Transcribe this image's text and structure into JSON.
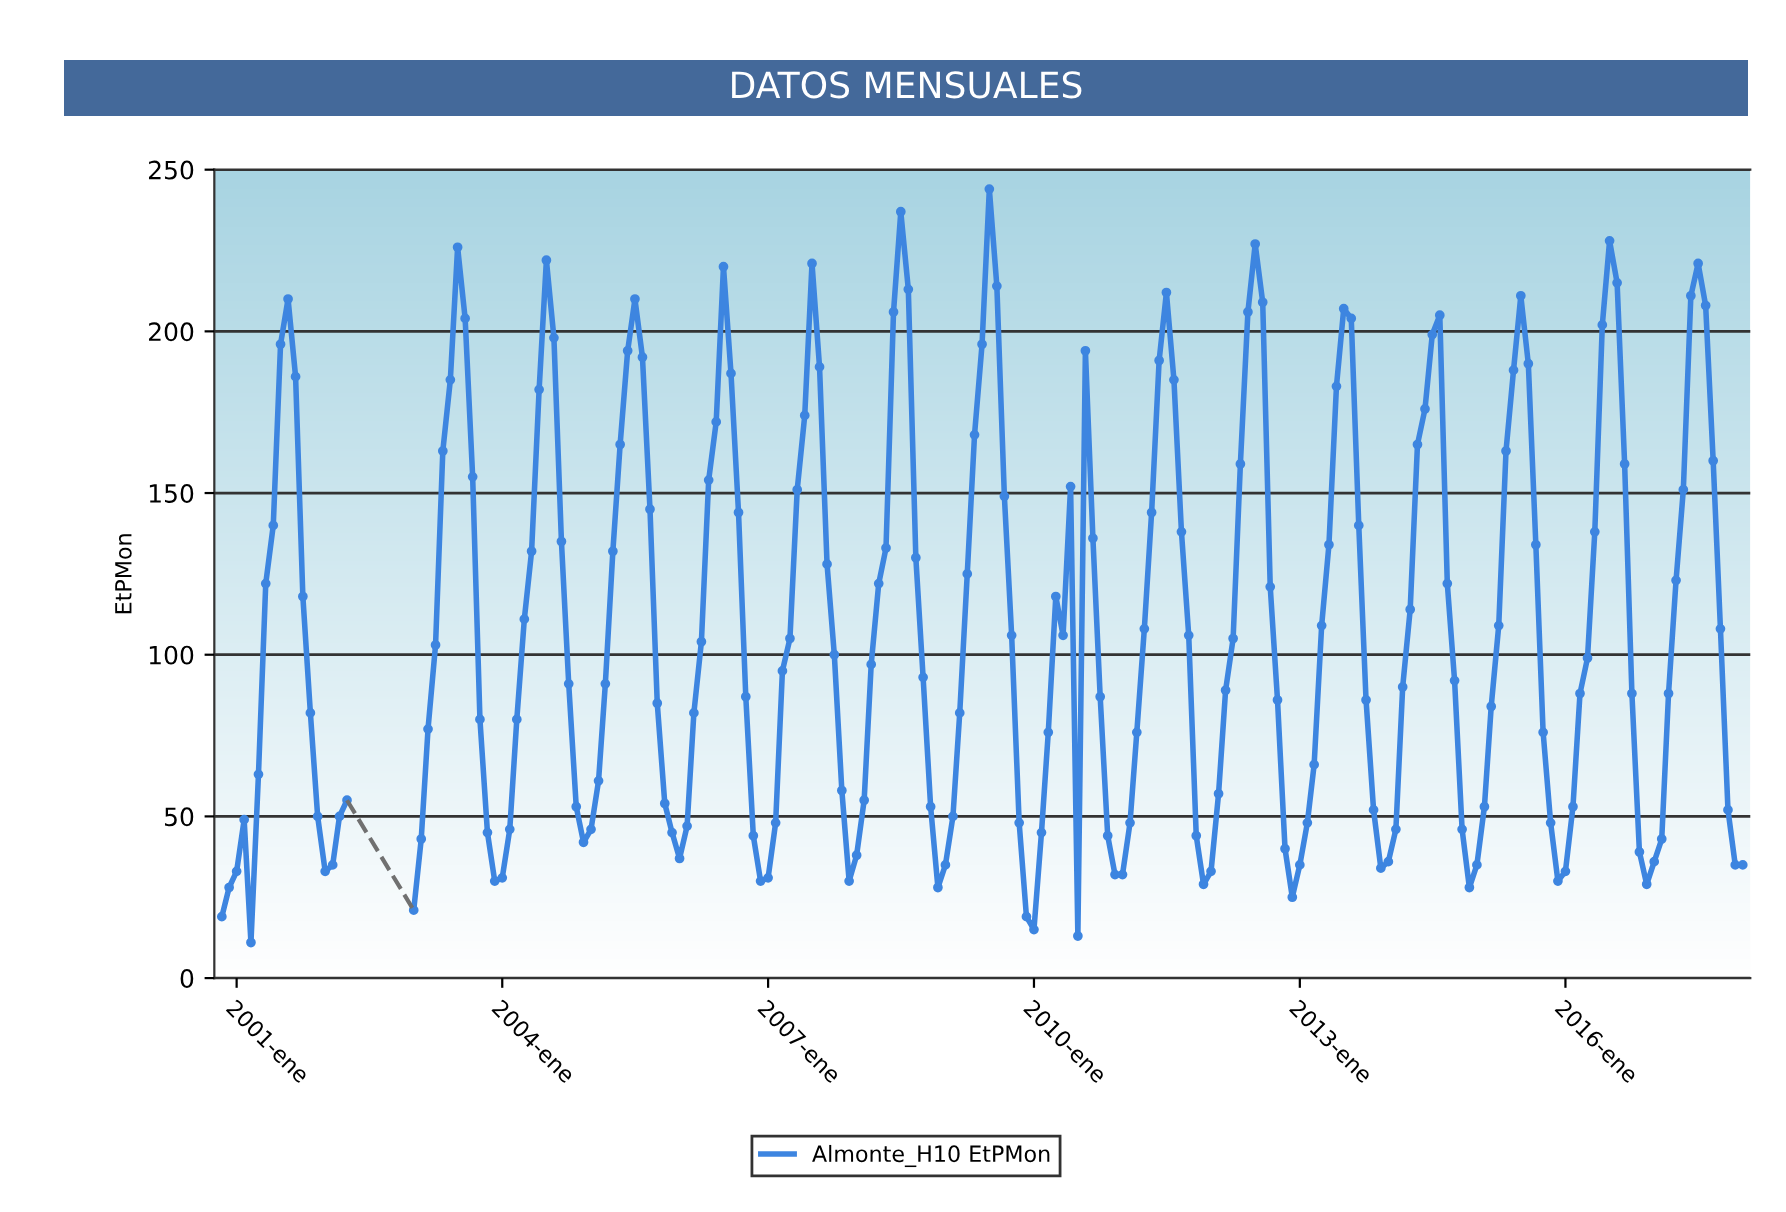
{
  "chart_data": {
    "type": "line",
    "title": "DATOS MENSUALES",
    "ylabel": "EtPMon",
    "xlim": [
      "2000-10",
      "2018-02"
    ],
    "ylim": [
      0,
      250
    ],
    "yticks": [
      0,
      50,
      100,
      150,
      200,
      250
    ],
    "xticks": [
      {
        "value": "2001-01",
        "label": "2001-ene"
      },
      {
        "value": "2004-01",
        "label": "2004-ene"
      },
      {
        "value": "2007-01",
        "label": "2007-ene"
      },
      {
        "value": "2010-01",
        "label": "2010-ene"
      },
      {
        "value": "2013-01",
        "label": "2013-ene"
      },
      {
        "value": "2016-01",
        "label": "2016-ene"
      }
    ],
    "grid": "y",
    "legend": "bottom",
    "marker": "circle",
    "series": [
      {
        "name": "Almonte_H10 EtPMon",
        "color": "#3d85e0",
        "line_style": "solid",
        "x": [
          "2000-11",
          "2000-12",
          "2001-01",
          "2001-02",
          "2001-03",
          "2001-04",
          "2001-05",
          "2001-06",
          "2001-07",
          "2001-08",
          "2001-09",
          "2001-10",
          "2001-11",
          "2001-12",
          "2002-01",
          "2002-02",
          "2002-03",
          "2002-04",
          "2002-05",
          "2002-06",
          "2002-07",
          "2002-08",
          "2002-09",
          "2002-10",
          "2002-11",
          "2002-12",
          "2003-01",
          "2003-02",
          "2003-03",
          "2003-04",
          "2003-05",
          "2003-06",
          "2003-07",
          "2003-08",
          "2003-09",
          "2003-10",
          "2003-11",
          "2003-12",
          "2004-01",
          "2004-02",
          "2004-03",
          "2004-04",
          "2004-05",
          "2004-06",
          "2004-07",
          "2004-08",
          "2004-09",
          "2004-10",
          "2004-11",
          "2004-12",
          "2005-01",
          "2005-02",
          "2005-03",
          "2005-04",
          "2005-05",
          "2005-06",
          "2005-07",
          "2005-08",
          "2005-09",
          "2005-10",
          "2005-11",
          "2005-12",
          "2006-01",
          "2006-02",
          "2006-03",
          "2006-04",
          "2006-05",
          "2006-06",
          "2006-07",
          "2006-08",
          "2006-09",
          "2006-10",
          "2006-11",
          "2006-12",
          "2007-01",
          "2007-02",
          "2007-03",
          "2007-04",
          "2007-05",
          "2007-06",
          "2007-07",
          "2007-08",
          "2007-09",
          "2007-10",
          "2007-11",
          "2007-12",
          "2008-01",
          "2008-02",
          "2008-03",
          "2008-04",
          "2008-05",
          "2008-06",
          "2008-07",
          "2008-08",
          "2008-09",
          "2008-10",
          "2008-11",
          "2008-12",
          "2009-01",
          "2009-02",
          "2009-03",
          "2009-04",
          "2009-05",
          "2009-06",
          "2009-07",
          "2009-08",
          "2009-09",
          "2009-10",
          "2009-11",
          "2009-12",
          "2010-01",
          "2010-02",
          "2010-03",
          "2010-04",
          "2010-05",
          "2010-06",
          "2010-07",
          "2010-08",
          "2010-09",
          "2010-10",
          "2010-11",
          "2010-12",
          "2011-01",
          "2011-02",
          "2011-03",
          "2011-04",
          "2011-05",
          "2011-06",
          "2011-07",
          "2011-08",
          "2011-09",
          "2011-10",
          "2011-11",
          "2011-12",
          "2012-01",
          "2012-02",
          "2012-03",
          "2012-04",
          "2012-05",
          "2012-06",
          "2012-07",
          "2012-08",
          "2012-09",
          "2012-10",
          "2012-11",
          "2012-12",
          "2013-01",
          "2013-02",
          "2013-03",
          "2013-04",
          "2013-05",
          "2013-06",
          "2013-07",
          "2013-08",
          "2013-09",
          "2013-10",
          "2013-11",
          "2013-12",
          "2014-01",
          "2014-02",
          "2014-03",
          "2014-04",
          "2014-05",
          "2014-06",
          "2014-07",
          "2014-08",
          "2014-09",
          "2014-10",
          "2014-11",
          "2014-12",
          "2015-01",
          "2015-02",
          "2015-03",
          "2015-04",
          "2015-05",
          "2015-06",
          "2015-07",
          "2015-08",
          "2015-09",
          "2015-10",
          "2015-11",
          "2015-12",
          "2016-01",
          "2016-02",
          "2016-03",
          "2016-04",
          "2016-05",
          "2016-06",
          "2016-07",
          "2016-08",
          "2016-09",
          "2016-10",
          "2016-11",
          "2016-12",
          "2017-01",
          "2017-02",
          "2017-03",
          "2017-04",
          "2017-05",
          "2017-06",
          "2017-07",
          "2017-08",
          "2017-09",
          "2017-10",
          "2017-11",
          "2017-12",
          "2018-01"
        ],
        "values": [
          19,
          28,
          33,
          49,
          11,
          63,
          122,
          140,
          196,
          210,
          186,
          118,
          82,
          50,
          33,
          35,
          50,
          55,
          null,
          null,
          null,
          null,
          null,
          null,
          null,
          null,
          21,
          43,
          77,
          103,
          163,
          185,
          226,
          204,
          155,
          80,
          45,
          30,
          31,
          46,
          80,
          111,
          132,
          182,
          222,
          198,
          135,
          91,
          53,
          42,
          46,
          61,
          91,
          132,
          165,
          194,
          210,
          192,
          145,
          85,
          54,
          45,
          37,
          47,
          82,
          104,
          154,
          172,
          220,
          187,
          144,
          87,
          44,
          30,
          31,
          48,
          95,
          105,
          151,
          174,
          221,
          189,
          128,
          100,
          58,
          30,
          38,
          55,
          97,
          122,
          133,
          206,
          237,
          213,
          130,
          93,
          53,
          28,
          35,
          50,
          82,
          125,
          168,
          196,
          244,
          214,
          149,
          106,
          48,
          19,
          15,
          45,
          76,
          118,
          106,
          152,
          13,
          194,
          136,
          87,
          44,
          32,
          32,
          48,
          76,
          108,
          144,
          191,
          212,
          185,
          138,
          106,
          44,
          29,
          33,
          57,
          89,
          105,
          159,
          206,
          227,
          209,
          121,
          86,
          40,
          25,
          35,
          48,
          66,
          109,
          134,
          183,
          207,
          204,
          140,
          86,
          52,
          34,
          36,
          46,
          90,
          114,
          165,
          176,
          199,
          205,
          122,
          92,
          46,
          28,
          35,
          53,
          84,
          109,
          163,
          188,
          211,
          190,
          134,
          76,
          48,
          30,
          33,
          53,
          88,
          99,
          138,
          202,
          228,
          215,
          159,
          88,
          39,
          29,
          36,
          43,
          88,
          123,
          151,
          211,
          221,
          208,
          160,
          108,
          52,
          35,
          35
        ]
      },
      {
        "color": "#707070",
        "line_style": "dashed",
        "marker": "none",
        "x": [
          "2002-04",
          "2003-01"
        ],
        "values": [
          55,
          21
        ]
      }
    ]
  }
}
